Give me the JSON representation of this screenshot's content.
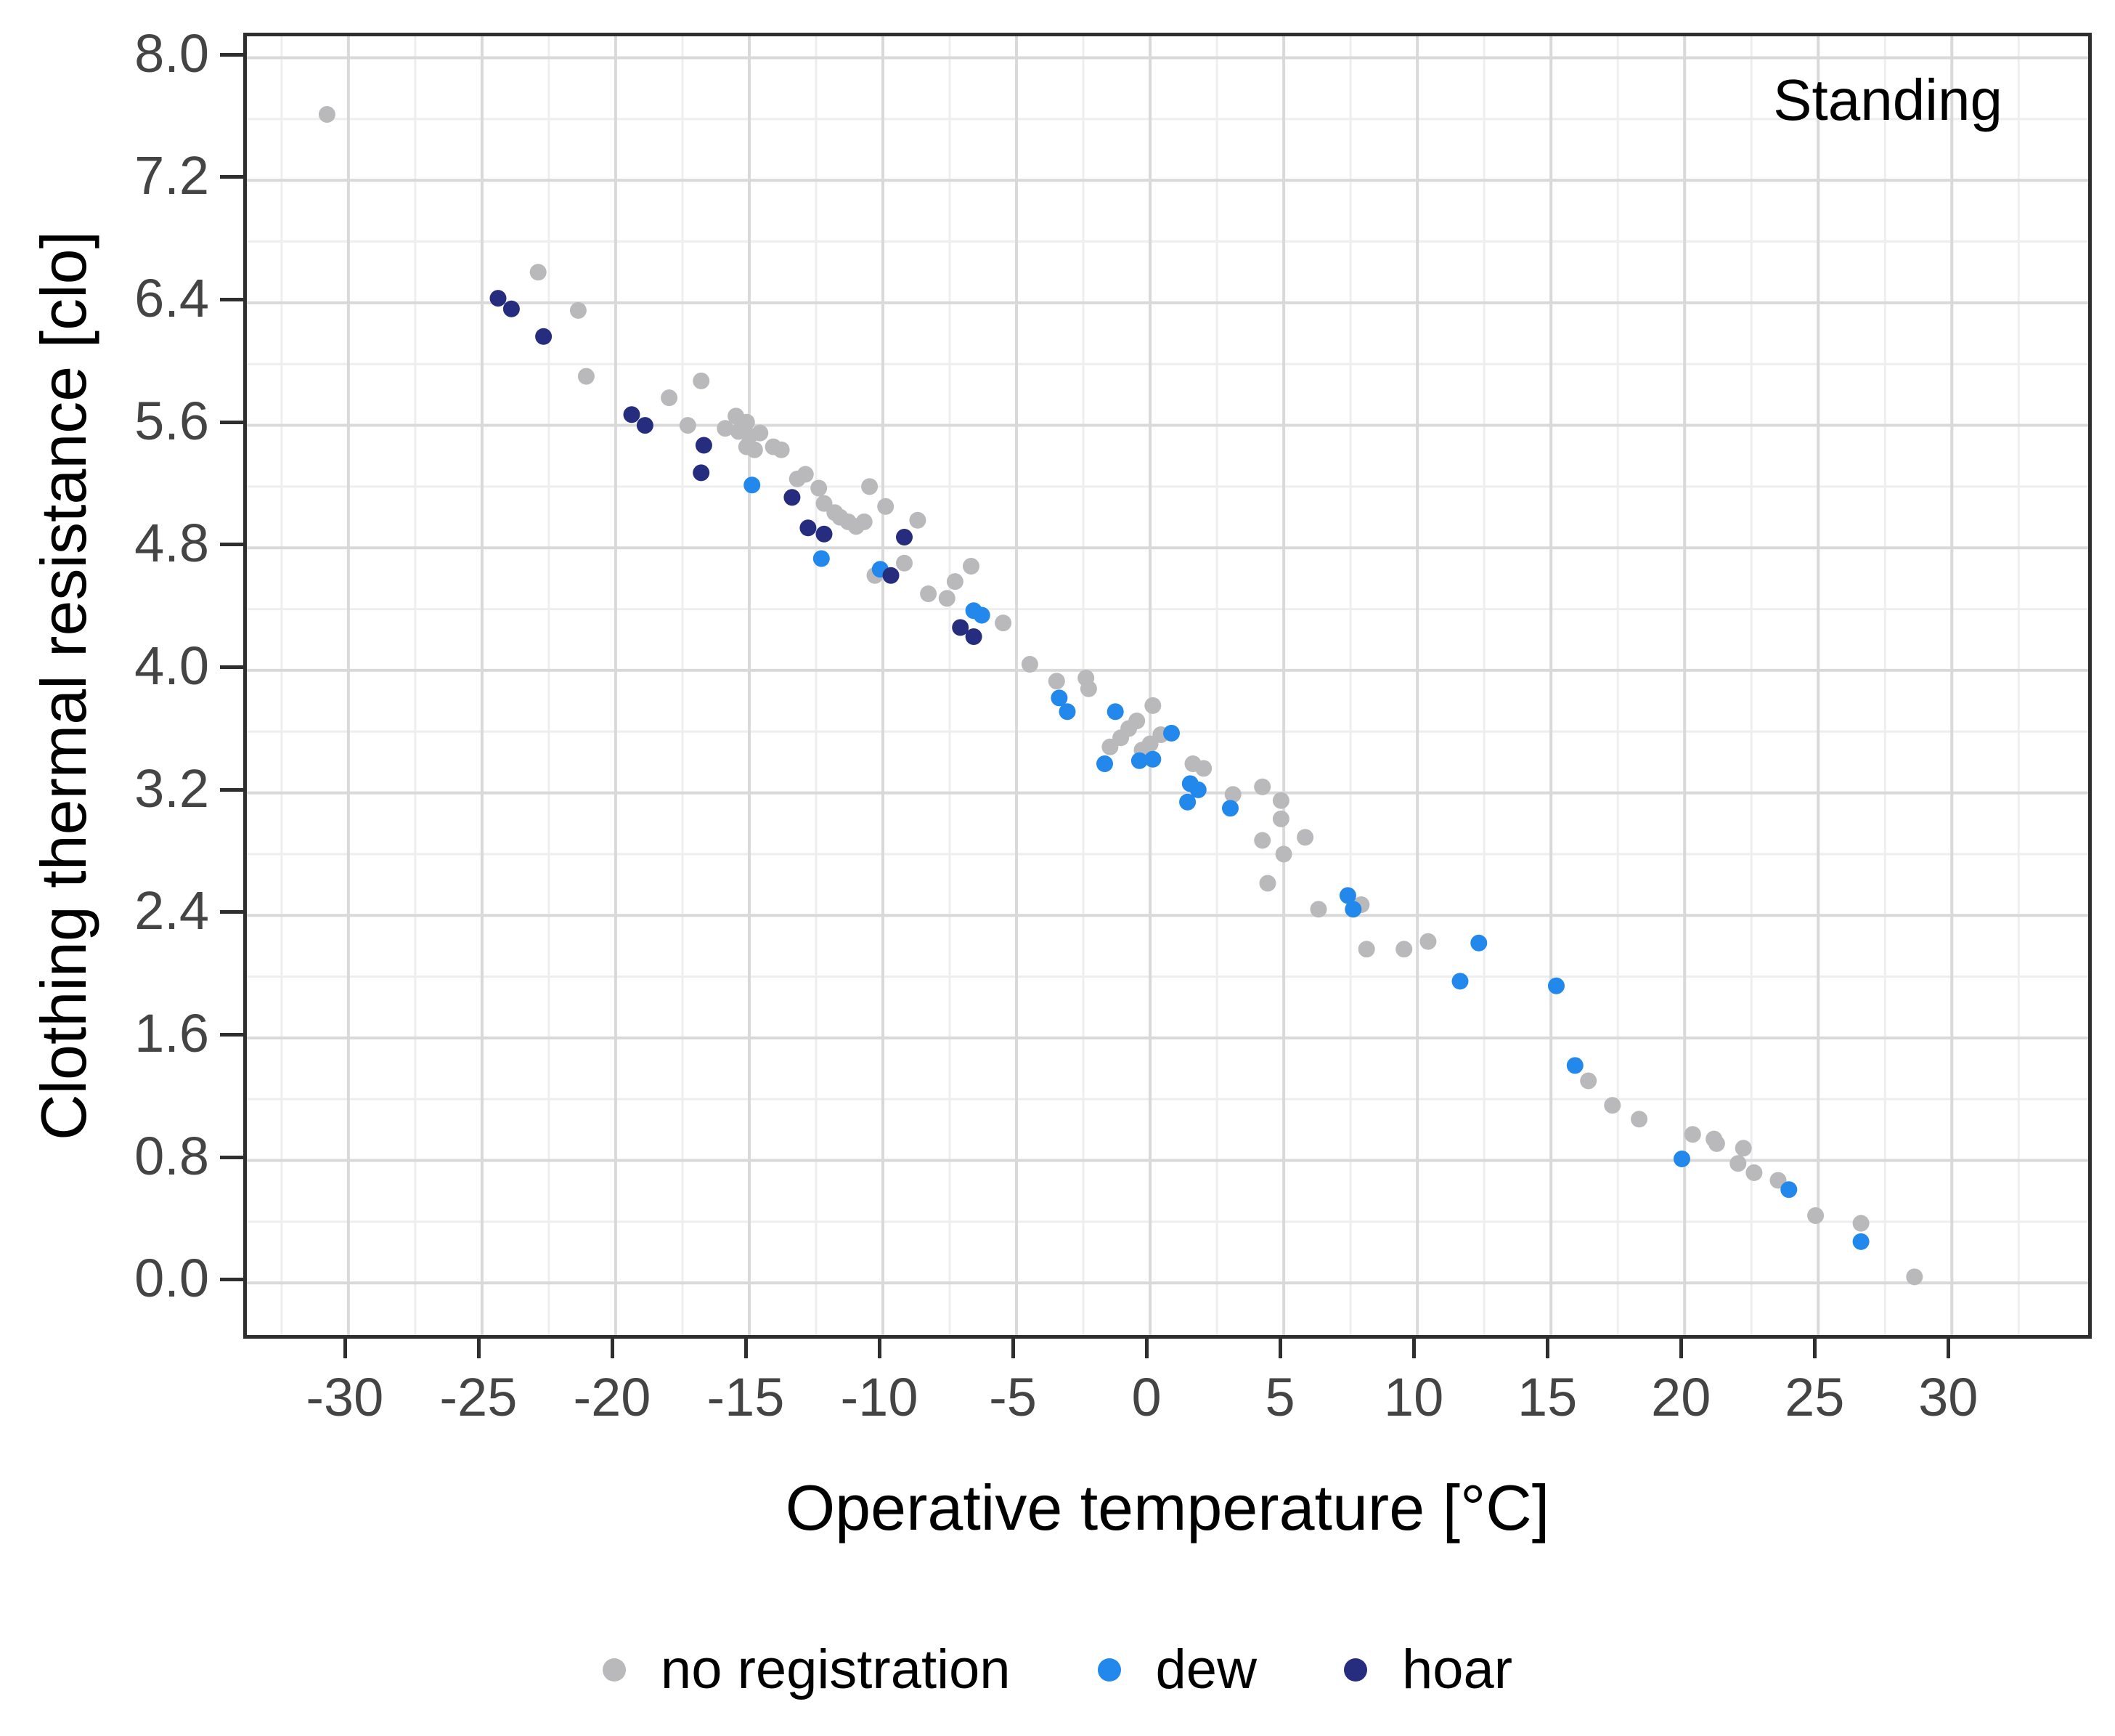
{
  "chart_data": {
    "type": "scatter",
    "annotation": "Standing",
    "xlabel": "Operative temperature [°C]",
    "ylabel": "Clothing thermal resistance [clo]",
    "xlim": [
      -33.8,
      35.1
    ],
    "ylim": [
      -0.34,
      8.14
    ],
    "x_ticks": [
      {
        "v": -30,
        "label": "-30"
      },
      {
        "v": -25,
        "label": "-25"
      },
      {
        "v": -20,
        "label": "-20"
      },
      {
        "v": -15,
        "label": "-15"
      },
      {
        "v": -10,
        "label": "-10"
      },
      {
        "v": -5,
        "label": "-5"
      },
      {
        "v": 0,
        "label": "0"
      },
      {
        "v": 5,
        "label": "5"
      },
      {
        "v": 10,
        "label": "10"
      },
      {
        "v": 15,
        "label": "15"
      },
      {
        "v": 20,
        "label": "20"
      },
      {
        "v": 25,
        "label": "25"
      },
      {
        "v": 30,
        "label": "30"
      }
    ],
    "y_ticks": [
      {
        "v": 0.0,
        "label": "0.0"
      },
      {
        "v": 0.8,
        "label": "0.8"
      },
      {
        "v": 1.6,
        "label": "1.6"
      },
      {
        "v": 2.4,
        "label": "2.4"
      },
      {
        "v": 3.2,
        "label": "3.2"
      },
      {
        "v": 4.0,
        "label": "4.0"
      },
      {
        "v": 4.8,
        "label": "4.8"
      },
      {
        "v": 5.6,
        "label": "5.6"
      },
      {
        "v": 6.4,
        "label": "6.4"
      },
      {
        "v": 7.2,
        "label": "7.2"
      },
      {
        "v": 8.0,
        "label": "8.0"
      }
    ],
    "x_minor": [
      -32.5,
      -27.5,
      -22.5,
      -17.5,
      -12.5,
      -7.5,
      -2.5,
      2.5,
      7.5,
      12.5,
      17.5,
      22.5,
      27.5,
      32.5
    ],
    "y_minor": [
      0.4,
      1.2,
      2.0,
      2.8,
      3.6,
      4.4,
      5.2,
      6.0,
      6.8,
      7.6
    ],
    "grid": {
      "major_color": "#d9d9d9",
      "minor_color": "#eeeeee",
      "background": "#ffffff",
      "border_color": "#2e2e2e"
    },
    "point_radius": 11.5,
    "legend_position": "bottom",
    "series": [
      {
        "name": "no registration",
        "color": "#b9b9bb",
        "points": [
          [
            -30.8,
            7.63
          ],
          [
            -22.9,
            6.6
          ],
          [
            -21.4,
            6.35
          ],
          [
            -21.1,
            5.92
          ],
          [
            -18.0,
            5.78
          ],
          [
            -17.3,
            5.6
          ],
          [
            -16.8,
            5.89
          ],
          [
            -15.9,
            5.58
          ],
          [
            -15.5,
            5.66
          ],
          [
            -15.1,
            5.62
          ],
          [
            -15.4,
            5.56
          ],
          [
            -15.0,
            5.53
          ],
          [
            -14.6,
            5.55
          ],
          [
            -15.1,
            5.46
          ],
          [
            -14.8,
            5.44
          ],
          [
            -14.1,
            5.46
          ],
          [
            -13.8,
            5.44
          ],
          [
            -13.2,
            5.25
          ],
          [
            -12.9,
            5.28
          ],
          [
            -12.4,
            5.19
          ],
          [
            -12.2,
            5.09
          ],
          [
            -11.8,
            5.03
          ],
          [
            -11.6,
            5.0
          ],
          [
            -11.3,
            4.97
          ],
          [
            -11.0,
            4.94
          ],
          [
            -10.7,
            4.97
          ],
          [
            -10.5,
            5.2
          ],
          [
            -9.9,
            5.07
          ],
          [
            -8.7,
            4.98
          ],
          [
            -10.3,
            4.62
          ],
          [
            -9.2,
            4.7
          ],
          [
            -8.3,
            4.5
          ],
          [
            -7.6,
            4.47
          ],
          [
            -7.3,
            4.58
          ],
          [
            -6.7,
            4.68
          ],
          [
            -5.5,
            4.31
          ],
          [
            -4.5,
            4.04
          ],
          [
            -3.5,
            3.93
          ],
          [
            -2.4,
            3.95
          ],
          [
            -2.3,
            3.88
          ],
          [
            -1.5,
            3.5
          ],
          [
            -1.1,
            3.56
          ],
          [
            -0.8,
            3.62
          ],
          [
            -0.5,
            3.67
          ],
          [
            -0.3,
            3.48
          ],
          [
            0.0,
            3.52
          ],
          [
            0.1,
            3.77
          ],
          [
            0.4,
            3.58
          ],
          [
            1.6,
            3.39
          ],
          [
            2.0,
            3.36
          ],
          [
            3.1,
            3.19
          ],
          [
            4.2,
            3.24
          ],
          [
            4.9,
            3.15
          ],
          [
            4.9,
            3.03
          ],
          [
            4.2,
            2.89
          ],
          [
            5.8,
            2.91
          ],
          [
            5.0,
            2.8
          ],
          [
            4.4,
            2.61
          ],
          [
            6.3,
            2.44
          ],
          [
            7.9,
            2.47
          ],
          [
            8.1,
            2.18
          ],
          [
            9.5,
            2.18
          ],
          [
            10.4,
            2.23
          ],
          [
            16.4,
            1.32
          ],
          [
            17.3,
            1.16
          ],
          [
            18.3,
            1.07
          ],
          [
            20.3,
            0.97
          ],
          [
            21.1,
            0.94
          ],
          [
            21.2,
            0.91
          ],
          [
            22.2,
            0.88
          ],
          [
            22.0,
            0.78
          ],
          [
            22.6,
            0.72
          ],
          [
            23.5,
            0.67
          ],
          [
            24.9,
            0.44
          ],
          [
            26.6,
            0.39
          ],
          [
            28.6,
            0.04
          ]
        ]
      },
      {
        "name": "dew",
        "color": "#2388eb",
        "points": [
          [
            -14.9,
            5.21
          ],
          [
            -12.3,
            4.73
          ],
          [
            -10.1,
            4.66
          ],
          [
            -6.6,
            4.39
          ],
          [
            -6.3,
            4.36
          ],
          [
            -3.4,
            3.82
          ],
          [
            -3.1,
            3.73
          ],
          [
            -1.3,
            3.73
          ],
          [
            0.8,
            3.59
          ],
          [
            -1.7,
            3.39
          ],
          [
            -0.4,
            3.41
          ],
          [
            0.1,
            3.42
          ],
          [
            1.5,
            3.26
          ],
          [
            1.8,
            3.22
          ],
          [
            1.4,
            3.14
          ],
          [
            3.0,
            3.1
          ],
          [
            7.4,
            2.53
          ],
          [
            7.6,
            2.44
          ],
          [
            12.3,
            2.22
          ],
          [
            11.6,
            1.97
          ],
          [
            15.2,
            1.94
          ],
          [
            15.9,
            1.42
          ],
          [
            19.9,
            0.81
          ],
          [
            23.9,
            0.61
          ],
          [
            26.6,
            0.27
          ]
        ]
      },
      {
        "name": "hoar",
        "color": "#262d7f",
        "points": [
          [
            -24.4,
            6.43
          ],
          [
            -23.9,
            6.36
          ],
          [
            -22.7,
            6.18
          ],
          [
            -19.4,
            5.67
          ],
          [
            -18.9,
            5.6
          ],
          [
            -16.7,
            5.47
          ],
          [
            -16.8,
            5.29
          ],
          [
            -13.4,
            5.13
          ],
          [
            -12.8,
            4.93
          ],
          [
            -12.2,
            4.89
          ],
          [
            -9.2,
            4.87
          ],
          [
            -9.7,
            4.62
          ],
          [
            -7.1,
            4.28
          ],
          [
            -6.6,
            4.22
          ]
        ]
      }
    ]
  }
}
